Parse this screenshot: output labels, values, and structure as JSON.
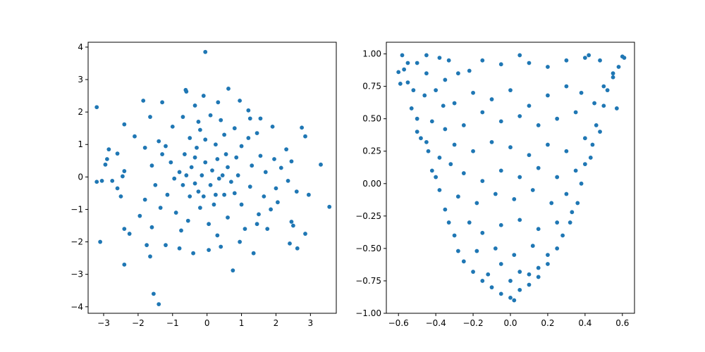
{
  "chart_data": [
    {
      "type": "scatter",
      "title": "",
      "xlabel": "",
      "ylabel": "",
      "grid": false,
      "marker_color": "#1f77b4",
      "xlim": [
        -3.45,
        3.75
      ],
      "ylim": [
        -4.2,
        4.15
      ],
      "xticks": [
        -3,
        -2,
        -1,
        0,
        1,
        2,
        3
      ],
      "xtick_labels": [
        "−3",
        "−2",
        "−1",
        "0",
        "1",
        "2",
        "3"
      ],
      "yticks": [
        -4,
        -3,
        -2,
        -1,
        0,
        1,
        2,
        3,
        4
      ],
      "ytick_labels": [
        "−4",
        "−3",
        "−2",
        "−1",
        "0",
        "1",
        "2",
        "3",
        "4"
      ],
      "series": [
        {
          "points": [
            [
              -0.05,
              3.85
            ],
            [
              0.62,
              2.72
            ],
            [
              -0.62,
              2.68
            ],
            [
              -0.6,
              2.63
            ],
            [
              -3.2,
              2.15
            ],
            [
              -1.85,
              2.35
            ],
            [
              -1.65,
              1.85
            ],
            [
              -1.3,
              2.3
            ],
            [
              0.95,
              2.35
            ],
            [
              -0.1,
              2.5
            ],
            [
              0.32,
              2.3
            ],
            [
              1.25,
              1.8
            ],
            [
              2.75,
              1.52
            ],
            [
              2.85,
              1.25
            ],
            [
              -2.4,
              1.62
            ],
            [
              -2.85,
              0.85
            ],
            [
              -2.6,
              0.72
            ],
            [
              -2.9,
              0.55
            ],
            [
              -2.95,
              0.38
            ],
            [
              -2.4,
              0.18
            ],
            [
              -2.45,
              0.02
            ],
            [
              -3.2,
              -0.15
            ],
            [
              -3.05,
              -0.12
            ],
            [
              -2.75,
              -0.12
            ],
            [
              -2.6,
              -0.35
            ],
            [
              -2.5,
              -0.6
            ],
            [
              -3.1,
              -2.0
            ],
            [
              -2.4,
              -1.6
            ],
            [
              -2.25,
              -1.75
            ],
            [
              -2.4,
              -2.7
            ],
            [
              -1.75,
              -2.1
            ],
            [
              -1.65,
              -2.45
            ],
            [
              -1.55,
              -3.6
            ],
            [
              -1.4,
              -3.92
            ],
            [
              -2.1,
              1.25
            ],
            [
              2.3,
              0.85
            ],
            [
              2.45,
              0.48
            ],
            [
              2.35,
              -0.12
            ],
            [
              2.6,
              -0.45
            ],
            [
              2.95,
              -0.55
            ],
            [
              3.3,
              0.38
            ],
            [
              3.55,
              -0.92
            ],
            [
              2.5,
              -1.5
            ],
            [
              2.4,
              -2.05
            ],
            [
              2.62,
              -2.2
            ],
            [
              2.85,
              -1.75
            ],
            [
              2.45,
              -1.38
            ],
            [
              0.75,
              -2.88
            ],
            [
              1.35,
              -2.35
            ],
            [
              1.75,
              -1.6
            ],
            [
              1.85,
              -1.0
            ],
            [
              2.05,
              -0.78
            ],
            [
              2.15,
              0.28
            ],
            [
              1.9,
              1.55
            ],
            [
              1.55,
              1.8
            ],
            [
              1.2,
              2.05
            ],
            [
              0.1,
              1.9
            ],
            [
              -0.35,
              2.2
            ],
            [
              -0.7,
              1.85
            ],
            [
              -0.25,
              1.7
            ],
            [
              0.4,
              1.75
            ],
            [
              0.8,
              1.5
            ],
            [
              -1.0,
              1.55
            ],
            [
              -1.4,
              1.1
            ],
            [
              -1.8,
              0.9
            ],
            [
              -1.6,
              0.35
            ],
            [
              -1.5,
              -0.25
            ],
            [
              -1.8,
              -0.7
            ],
            [
              -1.95,
              -1.2
            ],
            [
              -1.6,
              -1.55
            ],
            [
              -1.2,
              -2.1
            ],
            [
              -0.8,
              -2.2
            ],
            [
              -0.4,
              -2.35
            ],
            [
              0.05,
              -2.25
            ],
            [
              0.4,
              -2.15
            ],
            [
              0.95,
              -2.0
            ],
            [
              1.45,
              -1.45
            ],
            [
              1.65,
              -0.6
            ],
            [
              1.7,
              0.15
            ],
            [
              1.55,
              0.65
            ],
            [
              1.2,
              1.2
            ],
            [
              -0.5,
              1.2
            ],
            [
              -0.2,
              1.45
            ],
            [
              0.5,
              1.3
            ],
            [
              1.0,
              0.95
            ],
            [
              -1.2,
              0.95
            ],
            [
              -1.05,
              0.45
            ],
            [
              -0.95,
              -0.05
            ],
            [
              -1.15,
              -0.55
            ],
            [
              -0.9,
              -1.1
            ],
            [
              -0.55,
              -1.35
            ],
            [
              0.05,
              -1.45
            ],
            [
              0.6,
              -1.25
            ],
            [
              1.0,
              -0.85
            ],
            [
              1.25,
              -0.3
            ],
            [
              1.3,
              0.35
            ],
            [
              0.85,
              0.6
            ],
            [
              -0.3,
              0.9
            ],
            [
              0.25,
              1.0
            ],
            [
              -0.65,
              0.7
            ],
            [
              -0.45,
              0.3
            ],
            [
              -0.35,
              -0.2
            ],
            [
              -0.5,
              -0.6
            ],
            [
              -0.2,
              -0.95
            ],
            [
              0.2,
              -0.85
            ],
            [
              0.5,
              -0.55
            ],
            [
              0.7,
              -0.15
            ],
            [
              0.6,
              0.3
            ],
            [
              0.3,
              0.55
            ],
            [
              -0.05,
              0.45
            ],
            [
              -0.15,
              0.05
            ],
            [
              0.1,
              -0.25
            ],
            [
              0.35,
              -0.05
            ],
            [
              0.15,
              0.2
            ],
            [
              -0.25,
              -0.45
            ],
            [
              0.45,
              0.05
            ],
            [
              -0.7,
              -0.25
            ],
            [
              -0.8,
              0.15
            ],
            [
              0.9,
              0.05
            ],
            [
              0.8,
              -0.5
            ],
            [
              -0.1,
              -0.6
            ],
            [
              0.25,
              -0.55
            ],
            [
              -0.6,
              0.05
            ],
            [
              0.55,
              0.7
            ],
            [
              -0.35,
              0.6
            ],
            [
              1.45,
              1.35
            ],
            [
              1.95,
              0.55
            ],
            [
              2.0,
              -0.35
            ],
            [
              1.5,
              -1.15
            ],
            [
              -0.05,
              1.15
            ],
            [
              -1.3,
              0.7
            ],
            [
              -1.35,
              -0.95
            ],
            [
              -0.75,
              -1.65
            ],
            [
              0.3,
              -1.8
            ],
            [
              1.1,
              -1.6
            ]
          ]
        }
      ]
    },
    {
      "type": "scatter",
      "title": "",
      "xlabel": "",
      "ylabel": "",
      "grid": false,
      "marker_color": "#1f77b4",
      "xlim": [
        -0.665,
        0.665
      ],
      "ylim": [
        -1.0,
        1.09
      ],
      "xticks": [
        -0.6,
        -0.4,
        -0.2,
        0.0,
        0.2,
        0.4,
        0.6
      ],
      "xtick_labels": [
        "−0.6",
        "−0.4",
        "−0.2",
        "0.0",
        "0.2",
        "0.4",
        "0.6"
      ],
      "yticks": [
        -1.0,
        -0.75,
        -0.5,
        -0.25,
        0.0,
        0.25,
        0.5,
        0.75,
        1.0
      ],
      "ytick_labels": [
        "−1.00",
        "−0.75",
        "−0.50",
        "−0.25",
        "0.00",
        "0.25",
        "0.50",
        "0.75",
        "1.00"
      ],
      "series": [
        {
          "points": [
            [
              -0.58,
              0.99
            ],
            [
              -0.57,
              0.88
            ],
            [
              -0.6,
              0.86
            ],
            [
              -0.55,
              0.78
            ],
            [
              -0.59,
              0.77
            ],
            [
              -0.52,
              0.72
            ],
            [
              -0.5,
              0.93
            ],
            [
              -0.45,
              0.99
            ],
            [
              -0.38,
              0.97
            ],
            [
              -0.33,
              0.95
            ],
            [
              -0.53,
              0.58
            ],
            [
              -0.5,
              0.5
            ],
            [
              -0.48,
              0.35
            ],
            [
              -0.45,
              0.32
            ],
            [
              -0.44,
              0.25
            ],
            [
              -0.42,
              0.1
            ],
            [
              -0.4,
              0.05
            ],
            [
              -0.38,
              -0.05
            ],
            [
              -0.35,
              -0.2
            ],
            [
              -0.33,
              -0.3
            ],
            [
              -0.3,
              -0.4
            ],
            [
              -0.28,
              -0.52
            ],
            [
              -0.25,
              -0.6
            ],
            [
              -0.2,
              -0.68
            ],
            [
              -0.15,
              -0.75
            ],
            [
              -0.1,
              -0.8
            ],
            [
              -0.05,
              -0.85
            ],
            [
              0.0,
              -0.88
            ],
            [
              0.02,
              -0.9
            ],
            [
              0.05,
              -0.82
            ],
            [
              0.1,
              -0.78
            ],
            [
              0.15,
              -0.72
            ],
            [
              0.2,
              -0.62
            ],
            [
              0.25,
              -0.5
            ],
            [
              0.28,
              -0.4
            ],
            [
              0.32,
              -0.3
            ],
            [
              0.36,
              -0.15
            ],
            [
              0.38,
              0.0
            ],
            [
              0.4,
              0.15
            ],
            [
              0.44,
              0.3
            ],
            [
              0.46,
              0.45
            ],
            [
              0.5,
              0.6
            ],
            [
              0.52,
              0.72
            ],
            [
              0.55,
              0.82
            ],
            [
              0.58,
              0.9
            ],
            [
              0.61,
              0.97
            ],
            [
              0.6,
              0.98
            ],
            [
              0.55,
              0.85
            ],
            [
              0.48,
              0.95
            ],
            [
              0.42,
              0.99
            ],
            [
              0.4,
              0.97
            ],
            [
              0.3,
              0.95
            ],
            [
              0.2,
              0.9
            ],
            [
              0.1,
              0.93
            ],
            [
              0.05,
              0.99
            ],
            [
              -0.05,
              0.92
            ],
            [
              -0.15,
              0.95
            ],
            [
              -0.22,
              0.87
            ],
            [
              -0.28,
              0.85
            ],
            [
              -0.35,
              0.8
            ],
            [
              -0.4,
              0.72
            ],
            [
              -0.46,
              0.68
            ],
            [
              -0.3,
              0.62
            ],
            [
              -0.2,
              0.7
            ],
            [
              -0.1,
              0.65
            ],
            [
              0.0,
              0.72
            ],
            [
              0.1,
              0.6
            ],
            [
              0.2,
              0.68
            ],
            [
              0.3,
              0.75
            ],
            [
              0.38,
              0.7
            ],
            [
              0.45,
              0.62
            ],
            [
              0.35,
              0.55
            ],
            [
              0.25,
              0.5
            ],
            [
              0.15,
              0.45
            ],
            [
              0.05,
              0.52
            ],
            [
              -0.05,
              0.48
            ],
            [
              -0.15,
              0.55
            ],
            [
              -0.25,
              0.45
            ],
            [
              -0.35,
              0.42
            ],
            [
              -0.42,
              0.48
            ],
            [
              -0.3,
              0.3
            ],
            [
              -0.2,
              0.25
            ],
            [
              -0.1,
              0.32
            ],
            [
              0.0,
              0.28
            ],
            [
              0.1,
              0.22
            ],
            [
              0.2,
              0.3
            ],
            [
              0.3,
              0.25
            ],
            [
              0.4,
              0.35
            ],
            [
              0.35,
              0.1
            ],
            [
              0.25,
              0.05
            ],
            [
              0.15,
              0.12
            ],
            [
              0.05,
              0.05
            ],
            [
              -0.05,
              0.1
            ],
            [
              -0.15,
              0.02
            ],
            [
              -0.25,
              0.08
            ],
            [
              -0.32,
              0.15
            ],
            [
              -0.28,
              -0.1
            ],
            [
              -0.18,
              -0.15
            ],
            [
              -0.08,
              -0.08
            ],
            [
              0.02,
              -0.12
            ],
            [
              0.12,
              -0.05
            ],
            [
              0.22,
              -0.15
            ],
            [
              0.3,
              -0.08
            ],
            [
              0.25,
              -0.3
            ],
            [
              0.15,
              -0.35
            ],
            [
              0.05,
              -0.28
            ],
            [
              -0.05,
              -0.32
            ],
            [
              -0.15,
              -0.38
            ],
            [
              -0.22,
              -0.3
            ],
            [
              -0.18,
              -0.52
            ],
            [
              -0.08,
              -0.5
            ],
            [
              0.02,
              -0.55
            ],
            [
              0.12,
              -0.48
            ],
            [
              0.2,
              -0.55
            ],
            [
              0.15,
              -0.65
            ],
            [
              0.05,
              -0.68
            ],
            [
              -0.05,
              -0.62
            ],
            [
              -0.12,
              -0.7
            ],
            [
              0.0,
              -0.75
            ],
            [
              0.1,
              -0.7
            ],
            [
              -0.55,
              0.93
            ],
            [
              -0.45,
              0.85
            ],
            [
              0.5,
              0.75
            ],
            [
              0.57,
              0.58
            ],
            [
              -0.5,
              0.4
            ],
            [
              0.48,
              0.4
            ],
            [
              -0.36,
              0.6
            ],
            [
              0.43,
              0.2
            ],
            [
              -0.38,
              0.2
            ],
            [
              0.33,
              -0.22
            ]
          ]
        }
      ]
    }
  ]
}
